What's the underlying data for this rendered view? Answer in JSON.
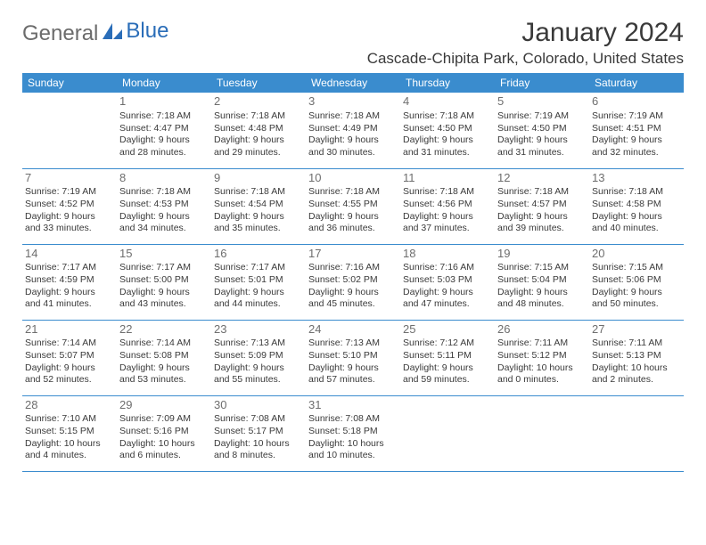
{
  "logo": {
    "part1": "General",
    "part2": "Blue"
  },
  "title": "January 2024",
  "location": "Cascade-Chipita Park, Colorado, United States",
  "colors": {
    "header_bg": "#3a8cce",
    "header_fg": "#ffffff",
    "row_border": "#3a8cce",
    "text": "#3a3a3a",
    "daynum": "#6e6e6e",
    "logo_gray": "#6b6b6b",
    "logo_blue": "#2a6db8",
    "background": "#ffffff"
  },
  "typography": {
    "month_title_fontsize": 30,
    "location_fontsize": 17,
    "weekday_fontsize": 12,
    "daynum_fontsize": 13,
    "cell_fontsize": 10.5,
    "logo_fontsize": 24
  },
  "weekdays": [
    "Sunday",
    "Monday",
    "Tuesday",
    "Wednesday",
    "Thursday",
    "Friday",
    "Saturday"
  ],
  "weeks": [
    [
      null,
      {
        "n": "1",
        "l1": "Sunrise: 7:18 AM",
        "l2": "Sunset: 4:47 PM",
        "l3": "Daylight: 9 hours",
        "l4": "and 28 minutes."
      },
      {
        "n": "2",
        "l1": "Sunrise: 7:18 AM",
        "l2": "Sunset: 4:48 PM",
        "l3": "Daylight: 9 hours",
        "l4": "and 29 minutes."
      },
      {
        "n": "3",
        "l1": "Sunrise: 7:18 AM",
        "l2": "Sunset: 4:49 PM",
        "l3": "Daylight: 9 hours",
        "l4": "and 30 minutes."
      },
      {
        "n": "4",
        "l1": "Sunrise: 7:18 AM",
        "l2": "Sunset: 4:50 PM",
        "l3": "Daylight: 9 hours",
        "l4": "and 31 minutes."
      },
      {
        "n": "5",
        "l1": "Sunrise: 7:19 AM",
        "l2": "Sunset: 4:50 PM",
        "l3": "Daylight: 9 hours",
        "l4": "and 31 minutes."
      },
      {
        "n": "6",
        "l1": "Sunrise: 7:19 AM",
        "l2": "Sunset: 4:51 PM",
        "l3": "Daylight: 9 hours",
        "l4": "and 32 minutes."
      }
    ],
    [
      {
        "n": "7",
        "l1": "Sunrise: 7:19 AM",
        "l2": "Sunset: 4:52 PM",
        "l3": "Daylight: 9 hours",
        "l4": "and 33 minutes."
      },
      {
        "n": "8",
        "l1": "Sunrise: 7:18 AM",
        "l2": "Sunset: 4:53 PM",
        "l3": "Daylight: 9 hours",
        "l4": "and 34 minutes."
      },
      {
        "n": "9",
        "l1": "Sunrise: 7:18 AM",
        "l2": "Sunset: 4:54 PM",
        "l3": "Daylight: 9 hours",
        "l4": "and 35 minutes."
      },
      {
        "n": "10",
        "l1": "Sunrise: 7:18 AM",
        "l2": "Sunset: 4:55 PM",
        "l3": "Daylight: 9 hours",
        "l4": "and 36 minutes."
      },
      {
        "n": "11",
        "l1": "Sunrise: 7:18 AM",
        "l2": "Sunset: 4:56 PM",
        "l3": "Daylight: 9 hours",
        "l4": "and 37 minutes."
      },
      {
        "n": "12",
        "l1": "Sunrise: 7:18 AM",
        "l2": "Sunset: 4:57 PM",
        "l3": "Daylight: 9 hours",
        "l4": "and 39 minutes."
      },
      {
        "n": "13",
        "l1": "Sunrise: 7:18 AM",
        "l2": "Sunset: 4:58 PM",
        "l3": "Daylight: 9 hours",
        "l4": "and 40 minutes."
      }
    ],
    [
      {
        "n": "14",
        "l1": "Sunrise: 7:17 AM",
        "l2": "Sunset: 4:59 PM",
        "l3": "Daylight: 9 hours",
        "l4": "and 41 minutes."
      },
      {
        "n": "15",
        "l1": "Sunrise: 7:17 AM",
        "l2": "Sunset: 5:00 PM",
        "l3": "Daylight: 9 hours",
        "l4": "and 43 minutes."
      },
      {
        "n": "16",
        "l1": "Sunrise: 7:17 AM",
        "l2": "Sunset: 5:01 PM",
        "l3": "Daylight: 9 hours",
        "l4": "and 44 minutes."
      },
      {
        "n": "17",
        "l1": "Sunrise: 7:16 AM",
        "l2": "Sunset: 5:02 PM",
        "l3": "Daylight: 9 hours",
        "l4": "and 45 minutes."
      },
      {
        "n": "18",
        "l1": "Sunrise: 7:16 AM",
        "l2": "Sunset: 5:03 PM",
        "l3": "Daylight: 9 hours",
        "l4": "and 47 minutes."
      },
      {
        "n": "19",
        "l1": "Sunrise: 7:15 AM",
        "l2": "Sunset: 5:04 PM",
        "l3": "Daylight: 9 hours",
        "l4": "and 48 minutes."
      },
      {
        "n": "20",
        "l1": "Sunrise: 7:15 AM",
        "l2": "Sunset: 5:06 PM",
        "l3": "Daylight: 9 hours",
        "l4": "and 50 minutes."
      }
    ],
    [
      {
        "n": "21",
        "l1": "Sunrise: 7:14 AM",
        "l2": "Sunset: 5:07 PM",
        "l3": "Daylight: 9 hours",
        "l4": "and 52 minutes."
      },
      {
        "n": "22",
        "l1": "Sunrise: 7:14 AM",
        "l2": "Sunset: 5:08 PM",
        "l3": "Daylight: 9 hours",
        "l4": "and 53 minutes."
      },
      {
        "n": "23",
        "l1": "Sunrise: 7:13 AM",
        "l2": "Sunset: 5:09 PM",
        "l3": "Daylight: 9 hours",
        "l4": "and 55 minutes."
      },
      {
        "n": "24",
        "l1": "Sunrise: 7:13 AM",
        "l2": "Sunset: 5:10 PM",
        "l3": "Daylight: 9 hours",
        "l4": "and 57 minutes."
      },
      {
        "n": "25",
        "l1": "Sunrise: 7:12 AM",
        "l2": "Sunset: 5:11 PM",
        "l3": "Daylight: 9 hours",
        "l4": "and 59 minutes."
      },
      {
        "n": "26",
        "l1": "Sunrise: 7:11 AM",
        "l2": "Sunset: 5:12 PM",
        "l3": "Daylight: 10 hours",
        "l4": "and 0 minutes."
      },
      {
        "n": "27",
        "l1": "Sunrise: 7:11 AM",
        "l2": "Sunset: 5:13 PM",
        "l3": "Daylight: 10 hours",
        "l4": "and 2 minutes."
      }
    ],
    [
      {
        "n": "28",
        "l1": "Sunrise: 7:10 AM",
        "l2": "Sunset: 5:15 PM",
        "l3": "Daylight: 10 hours",
        "l4": "and 4 minutes."
      },
      {
        "n": "29",
        "l1": "Sunrise: 7:09 AM",
        "l2": "Sunset: 5:16 PM",
        "l3": "Daylight: 10 hours",
        "l4": "and 6 minutes."
      },
      {
        "n": "30",
        "l1": "Sunrise: 7:08 AM",
        "l2": "Sunset: 5:17 PM",
        "l3": "Daylight: 10 hours",
        "l4": "and 8 minutes."
      },
      {
        "n": "31",
        "l1": "Sunrise: 7:08 AM",
        "l2": "Sunset: 5:18 PM",
        "l3": "Daylight: 10 hours",
        "l4": "and 10 minutes."
      },
      null,
      null,
      null
    ]
  ]
}
